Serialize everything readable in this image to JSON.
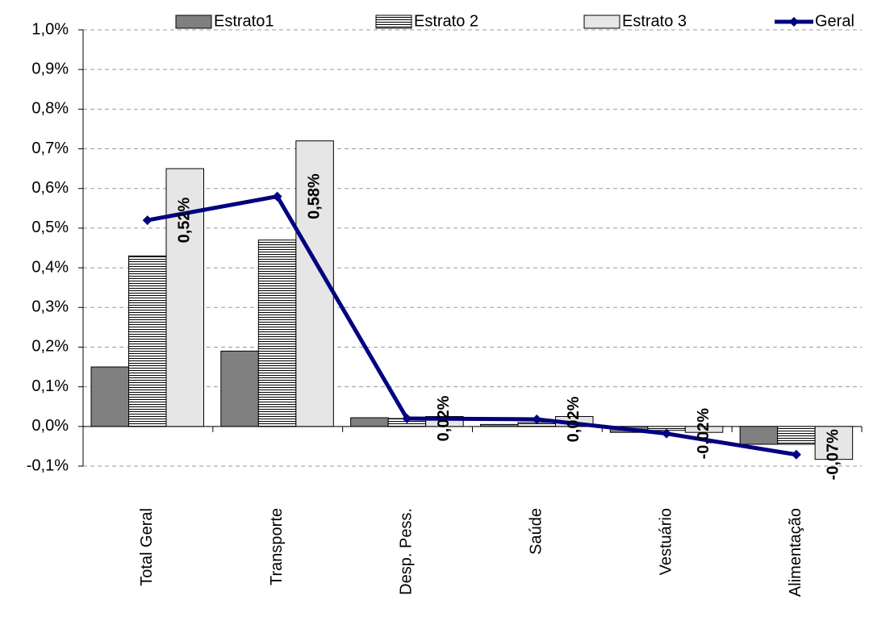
{
  "chart_data": {
    "type": "bar",
    "categories": [
      "Total Geral",
      "Transporte",
      "Desp. Pess.",
      "Saúde",
      "Vestuário",
      "Alimentação"
    ],
    "series": [
      {
        "name": "Estrato1",
        "color": "#808080",
        "values": [
          0.15,
          0.19,
          0.022,
          0.005,
          -0.015,
          -0.045
        ]
      },
      {
        "name": "Estrato 2",
        "color": "#ffffff",
        "hatch": "horizontal",
        "values": [
          0.43,
          0.47,
          0.02,
          0.01,
          -0.01,
          -0.045
        ]
      },
      {
        "name": "Estrato 3",
        "color": "#e6e6e6",
        "values": [
          0.65,
          0.72,
          0.025,
          0.025,
          -0.015,
          -0.083
        ]
      },
      {
        "name": "Geral",
        "type": "line",
        "color": "#000080",
        "values": [
          0.52,
          0.58,
          0.02,
          0.018,
          -0.018,
          -0.071
        ],
        "value_labels": [
          "0,52%",
          "0,58%",
          "0,02%",
          "0,02%",
          "-0,02%",
          "-0,07%"
        ]
      }
    ],
    "ylim": [
      -0.1,
      1.0
    ],
    "yticks": [
      {
        "value": -0.1,
        "label": "-0,1%"
      },
      {
        "value": 0,
        "label": "0,0%"
      },
      {
        "value": 0.1,
        "label": "0,1%"
      },
      {
        "value": 0.2,
        "label": "0,2%"
      },
      {
        "value": 0.3,
        "label": "0,3%"
      },
      {
        "value": 0.4,
        "label": "0,4%"
      },
      {
        "value": 0.5,
        "label": "0,5%"
      },
      {
        "value": 0.6,
        "label": "0,6%"
      },
      {
        "value": 0.7,
        "label": "0,7%"
      },
      {
        "value": 0.8,
        "label": "0,8%"
      },
      {
        "value": 0.9,
        "label": "0,9%"
      },
      {
        "value": 1.0,
        "label": "1,0%"
      }
    ],
    "grid": true,
    "legend": "top"
  }
}
